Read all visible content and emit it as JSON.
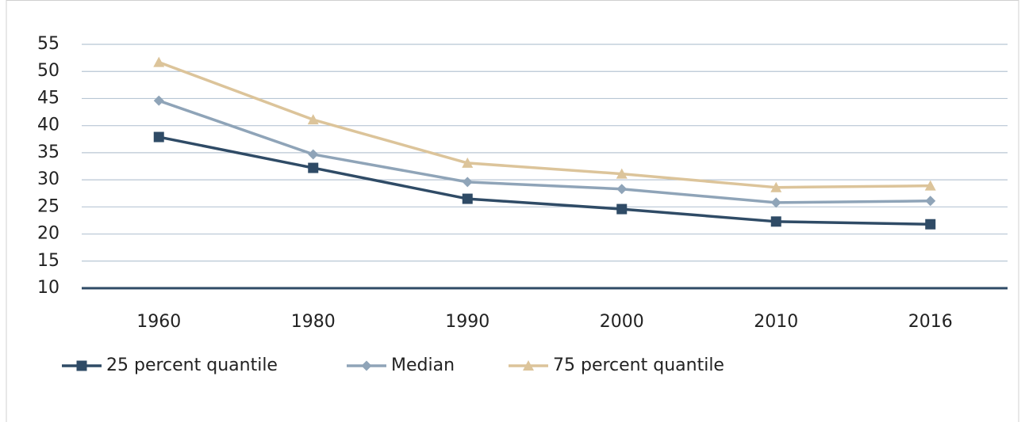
{
  "chart_data": {
    "type": "line",
    "categories": [
      "1960",
      "1980",
      "1990",
      "2000",
      "2010",
      "2016"
    ],
    "series": [
      {
        "name": "25 percent quantile",
        "color": "#2f4b66",
        "marker": "square",
        "values": [
          37.9,
          32.2,
          26.5,
          24.6,
          22.3,
          21.8
        ]
      },
      {
        "name": "Median",
        "color": "#8fa4b8",
        "marker": "diamond",
        "values": [
          44.6,
          34.7,
          29.6,
          28.3,
          25.8,
          26.1
        ]
      },
      {
        "name": "75 percent quantile",
        "color": "#dcc49a",
        "marker": "triangle",
        "values": [
          51.7,
          41.1,
          33.1,
          31.1,
          28.6,
          28.9
        ]
      }
    ],
    "ylim": [
      10,
      55
    ],
    "yticks": [
      10,
      15,
      20,
      25,
      30,
      35,
      40,
      45,
      50,
      55
    ],
    "grid": true,
    "legend": "bottom"
  }
}
